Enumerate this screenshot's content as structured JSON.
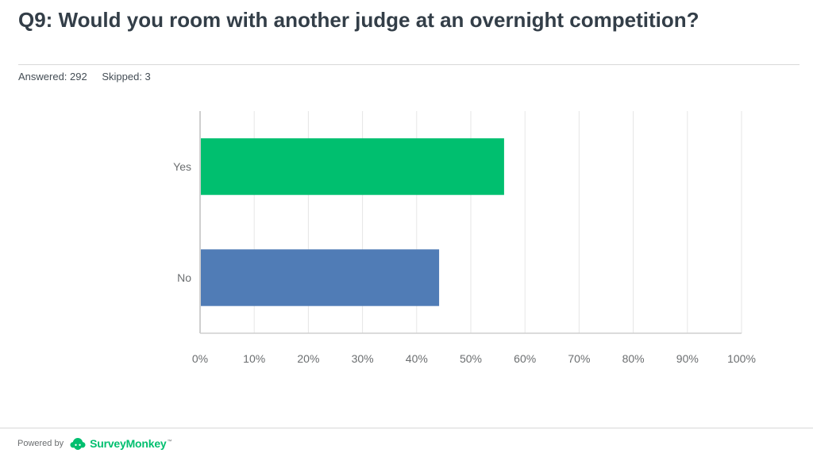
{
  "header": {
    "question": "Q9: Would you room with another judge at an overnight competition?",
    "answered": "Answered: 292",
    "skipped": "Skipped: 3"
  },
  "chart_data": {
    "type": "bar",
    "orientation": "horizontal",
    "categories": [
      "Yes",
      "No"
    ],
    "values": [
      56,
      44
    ],
    "colors": [
      "#00bf6f",
      "#507cb6"
    ],
    "xlim": [
      0,
      100
    ],
    "xticks": [
      "0%",
      "10%",
      "20%",
      "30%",
      "40%",
      "50%",
      "60%",
      "70%",
      "80%",
      "90%",
      "100%"
    ],
    "grid": true,
    "legend": "none"
  },
  "footer": {
    "powered_by": "Powered by",
    "brand": "SurveyMonkey",
    "brand_mark": "™",
    "brand_icon": "surveymonkey-logo-icon",
    "brand_color": "#00bf6f"
  }
}
